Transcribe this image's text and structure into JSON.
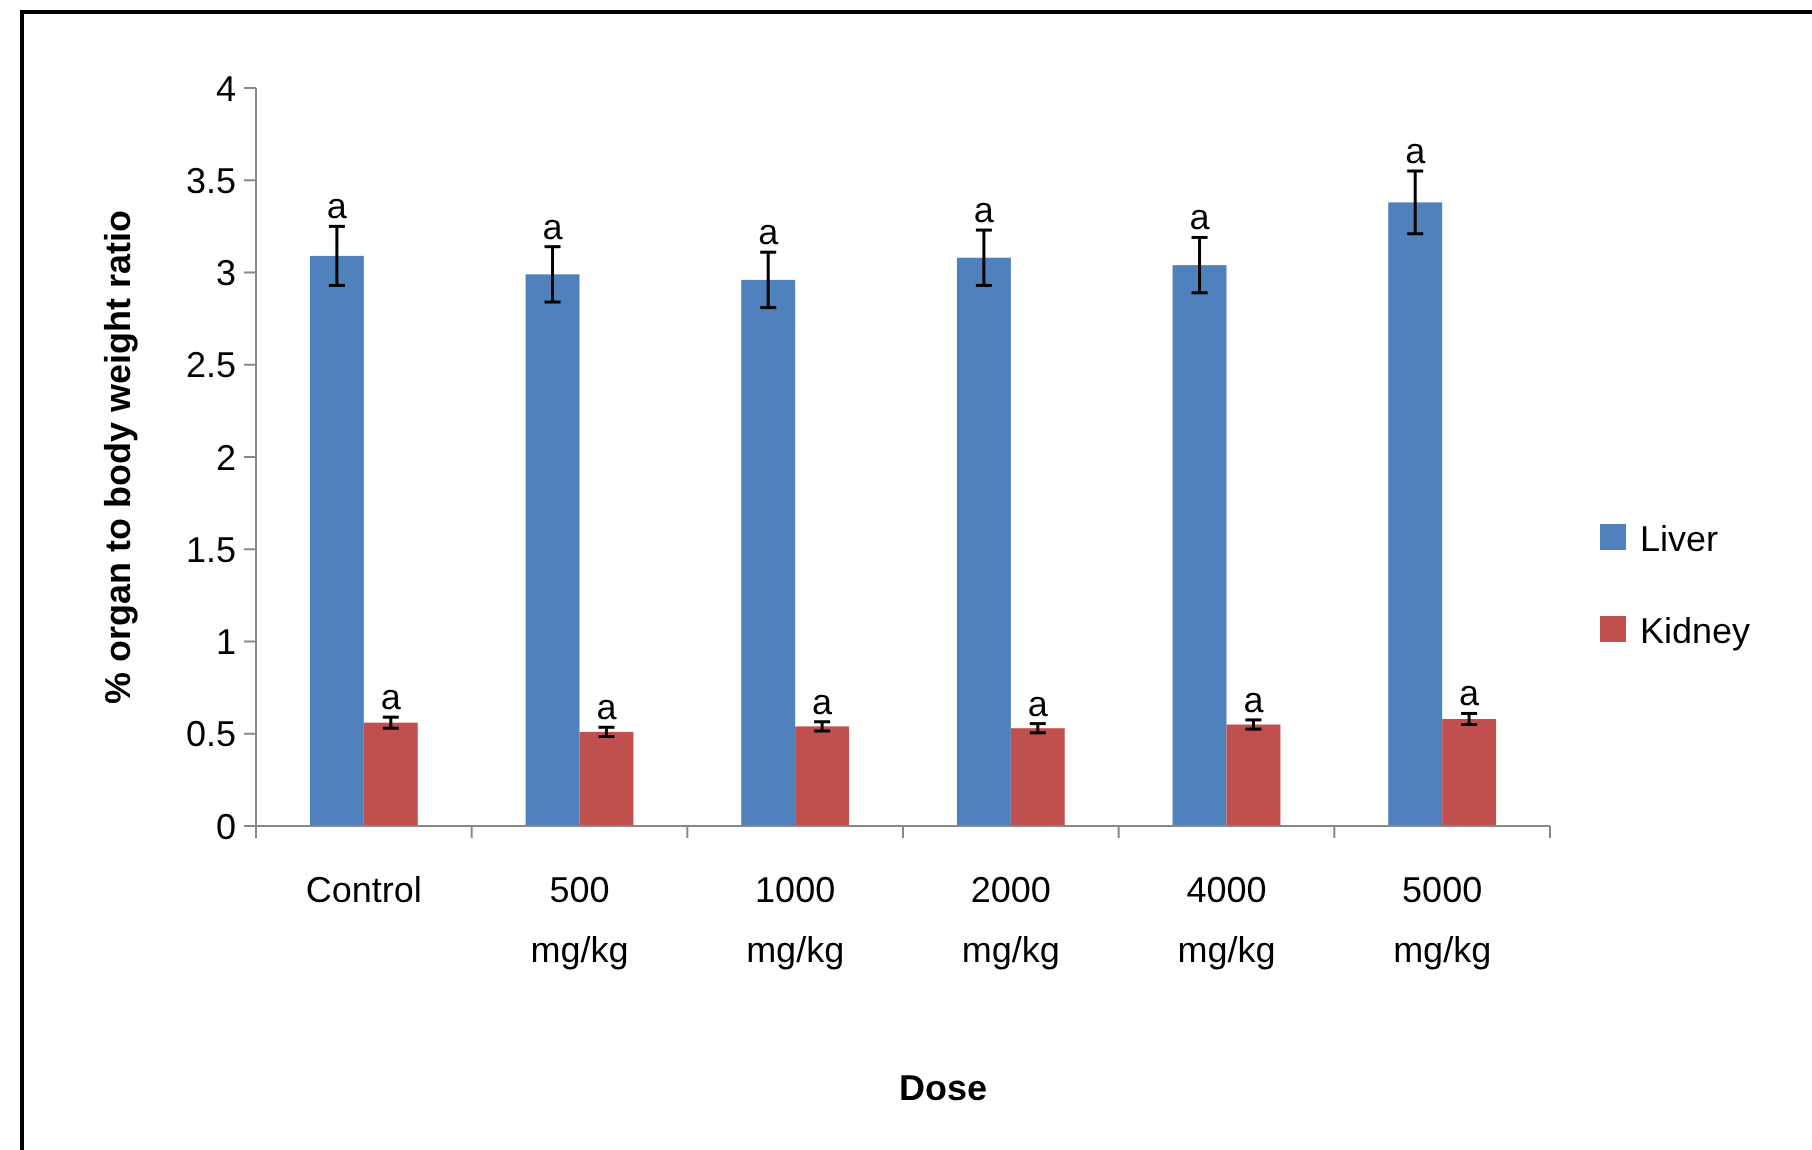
{
  "chart_data": {
    "type": "bar",
    "xlabel": "Dose",
    "ylabel": "% organ to body weight ratio",
    "categories": [
      "Control",
      "500 mg/kg",
      "1000 mg/kg",
      "2000 mg/kg",
      "4000 mg/kg",
      "5000 mg/kg"
    ],
    "series": [
      {
        "name": "Liver",
        "color": "#4f81bd",
        "values": [
          3.09,
          2.99,
          2.96,
          3.08,
          3.04,
          3.38
        ],
        "errors": [
          0.16,
          0.15,
          0.15,
          0.15,
          0.15,
          0.17
        ],
        "value_labels": [
          "a",
          "a",
          "a",
          "a",
          "a",
          "a"
        ]
      },
      {
        "name": "Kidney",
        "color": "#c0504d",
        "values": [
          0.56,
          0.51,
          0.54,
          0.53,
          0.55,
          0.58
        ],
        "errors": [
          0.03,
          0.025,
          0.025,
          0.025,
          0.025,
          0.03
        ],
        "value_labels": [
          "a",
          "a",
          "a",
          "a",
          "a",
          "a"
        ]
      }
    ],
    "ylim": [
      0,
      4
    ],
    "yticks": [
      0,
      0.5,
      1,
      1.5,
      2,
      2.5,
      3,
      3.5,
      4
    ],
    "grid": false,
    "legend": "right"
  }
}
